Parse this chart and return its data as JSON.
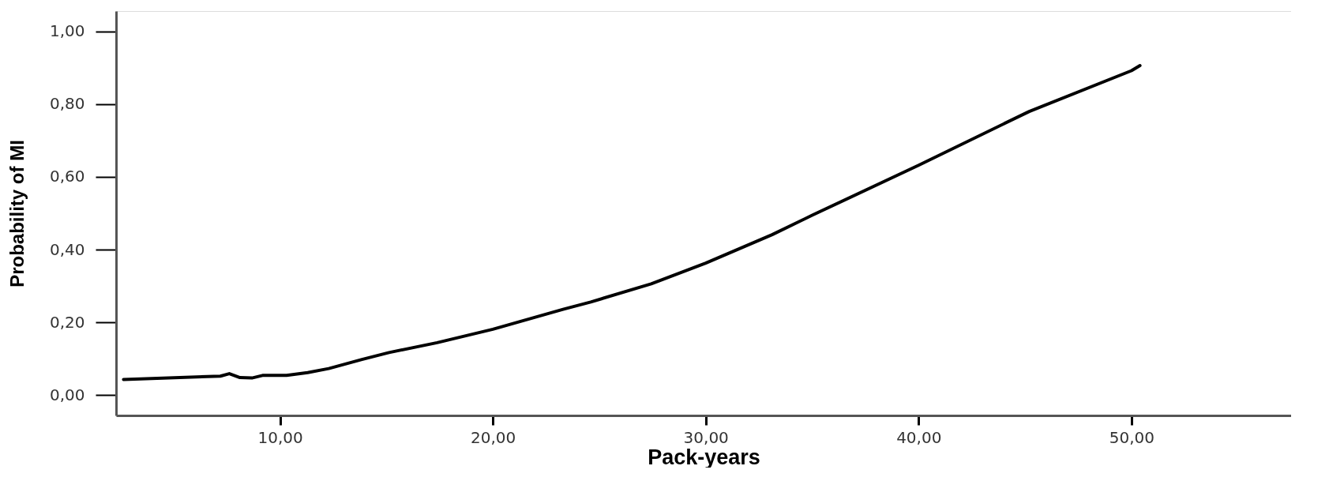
{
  "chart_data": {
    "type": "line",
    "xlabel": "Pack-years",
    "ylabel": "Probability of MI",
    "xlim": [
      2.3,
      57.5
    ],
    "ylim": [
      -0.056,
      1.056
    ],
    "xticks": [
      {
        "value": 10,
        "label": "10,00"
      },
      {
        "value": 20,
        "label": "20,00"
      },
      {
        "value": 30,
        "label": "30,00"
      },
      {
        "value": 40,
        "label": "40,00"
      },
      {
        "value": 50,
        "label": "50,00"
      }
    ],
    "yticks": [
      {
        "value": 0,
        "label": "0,00"
      },
      {
        "value": 0.2,
        "label": "0,20"
      },
      {
        "value": 0.4,
        "label": "0,40"
      },
      {
        "value": 0.6,
        "label": "0,60"
      },
      {
        "value": 0.8,
        "label": "0,80"
      },
      {
        "value": 1.0,
        "label": "1,00"
      }
    ],
    "grid": false,
    "legend": false,
    "marker": "none",
    "line_style": "solid",
    "series": [
      {
        "color": "#000000",
        "x": [
          2.65,
          7.2,
          7.62,
          8.12,
          8.68,
          9.18,
          10.31,
          11.3,
          12.29,
          13.85,
          15.12,
          17.38,
          20.0,
          23.3,
          24.6,
          27.44,
          30.0,
          33.12,
          35.02,
          40.0,
          45.2,
          50.0,
          50.4
        ],
        "values": [
          0.043,
          0.052,
          0.059,
          0.048,
          0.047,
          0.054,
          0.054,
          0.062,
          0.073,
          0.098,
          0.117,
          0.144,
          0.181,
          0.236,
          0.256,
          0.306,
          0.363,
          0.441,
          0.495,
          0.632,
          0.78,
          0.892,
          0.906
        ]
      }
    ]
  }
}
